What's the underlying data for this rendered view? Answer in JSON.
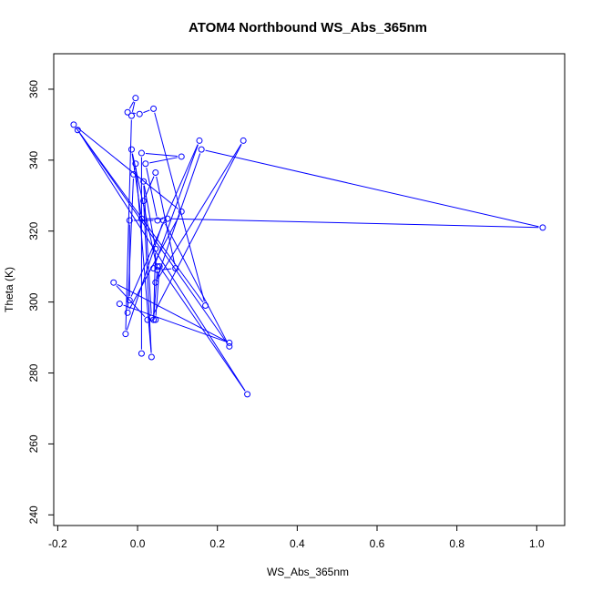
{
  "chart_data": {
    "type": "line",
    "title": "ATOM4 Northbound WS_Abs_365nm",
    "xlabel": "WS_Abs_365nm",
    "ylabel": "Theta (K)",
    "xlim": [
      -0.21,
      1.07
    ],
    "ylim": [
      237,
      370
    ],
    "xticks": [
      -0.2,
      0.0,
      0.2,
      0.4,
      0.6,
      0.8,
      1.0
    ],
    "xtick_labels": [
      "-0.2",
      "0.0",
      "0.2",
      "0.4",
      "0.6",
      "0.8",
      "1.0"
    ],
    "yticks": [
      240,
      260,
      280,
      300,
      320,
      340,
      360
    ],
    "ytick_labels": [
      "240",
      "260",
      "280",
      "300",
      "320",
      "340",
      "360"
    ],
    "grid": false,
    "color": "#0000ff",
    "series": [
      {
        "points": [
          [
            0.01,
            285.5
          ],
          [
            0.01,
            342.0
          ],
          [
            0.11,
            341.0
          ],
          [
            0.02,
            339.0
          ],
          [
            0.05,
            323.0
          ],
          [
            -0.02,
            323.0
          ],
          [
            -0.02,
            300.5
          ],
          [
            0.155,
            345.5
          ],
          [
            0.04,
            309.5
          ],
          [
            0.05,
            310.0
          ],
          [
            0.04,
            295.0
          ],
          [
            0.045,
            315.0
          ],
          [
            0.015,
            334.0
          ],
          [
            0.035,
            295.5
          ],
          [
            0.265,
            345.5
          ],
          [
            0.045,
            305.5
          ],
          [
            0.16,
            343.0
          ],
          [
            1.015,
            321.0
          ],
          [
            0.075,
            323.5
          ],
          [
            0.01,
            323.5
          ],
          [
            -0.015,
            343.0
          ],
          [
            0.05,
            309.0
          ],
          [
            0.095,
            309.5
          ],
          [
            0.045,
            336.5
          ],
          [
            0.015,
            328.5
          ],
          [
            0.035,
            284.5
          ],
          [
            -0.005,
            339.0
          ],
          [
            -0.01,
            336.0
          ],
          [
            -0.025,
            297.0
          ],
          [
            0.11,
            325.5
          ],
          [
            -0.16,
            350.0
          ],
          [
            0.17,
            299.0
          ],
          [
            0.04,
            354.5
          ],
          [
            0.005,
            353.0
          ],
          [
            -0.025,
            353.5
          ],
          [
            -0.005,
            357.5
          ],
          [
            -0.015,
            352.5
          ],
          [
            -0.03,
            291.0
          ],
          [
            0.065,
            323.0
          ],
          [
            0.23,
            287.5
          ],
          [
            -0.15,
            348.5
          ],
          [
            0.275,
            274.0
          ],
          [
            0.055,
            310.0
          ],
          [
            0.045,
            295.0
          ],
          [
            0.025,
            295.0
          ],
          [
            -0.06,
            305.5
          ],
          [
            0.23,
            288.5
          ],
          [
            -0.045,
            299.5
          ]
        ]
      }
    ]
  }
}
